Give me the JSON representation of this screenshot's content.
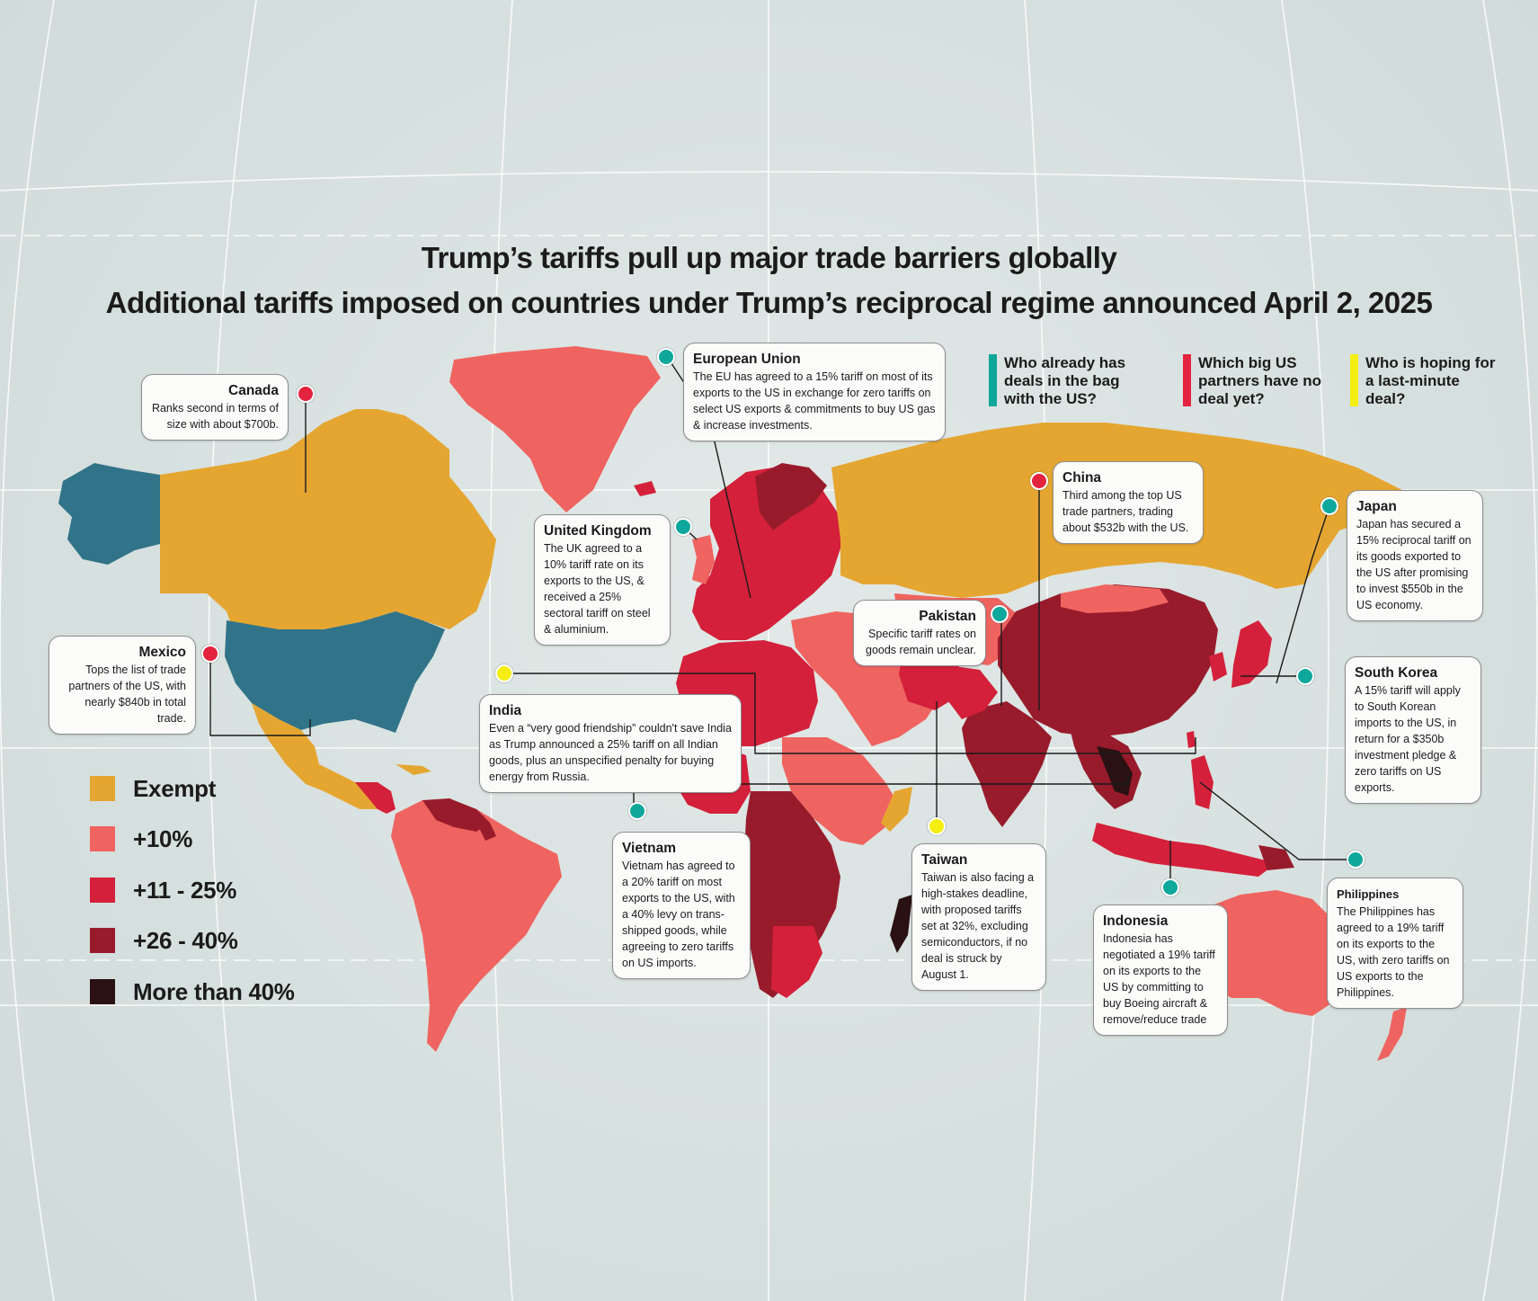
{
  "title": "Trump’s tariffs pull up major trade barriers globally",
  "subtitle": "Additional tariffs imposed on countries under Trump’s reciprocal regime announced April 2, 2025",
  "colors": {
    "exempt": "#e5a631",
    "plus10": "#ef6460",
    "plus11_25": "#d4203a",
    "plus26_40": "#981b2c",
    "more40": "#2a1113",
    "us_alaska": "#317489",
    "ocean": "#d8e2e1",
    "teal": "#0ea79b",
    "red": "#e4233f",
    "yellow": "#f4ee11"
  },
  "legend": [
    {
      "label": "Exempt",
      "color": "#e5a631"
    },
    {
      "label": "+10%",
      "color": "#ef6460"
    },
    {
      "label": "+11 - 25%",
      "color": "#d4203a"
    },
    {
      "label": "+26 - 40%",
      "color": "#981b2c"
    },
    {
      "label": "More than 40%",
      "color": "#2a1113"
    }
  ],
  "key": [
    {
      "label": "Who already has deals in the bag with the US?",
      "color": "#0ea79b"
    },
    {
      "label": "Which big US partners have no deal yet?",
      "color": "#e4233f"
    },
    {
      "label": "Who is hoping for a last-minute deal?",
      "color": "#f4ee11"
    }
  ],
  "callouts": {
    "canada": {
      "title": "Canada",
      "body": "Ranks second in terms of size with about $700b.",
      "marker": "red"
    },
    "mexico": {
      "title": "Mexico",
      "body": "Tops the list of trade partners of the US, with nearly $840b in total trade.",
      "marker": "red"
    },
    "eu": {
      "title": "European Union",
      "body": "The EU has agreed to a 15% tariff on most of its exports to the US in exchange for zero tariffs on select US exports & commitments to buy US gas & increase investments.",
      "marker": "teal"
    },
    "uk": {
      "title": "United Kingdom",
      "body": "The UK agreed to a 10% tariff rate on its exports to the US, & received a 25% sectoral tariff on steel & aluminium.",
      "marker": "teal"
    },
    "china": {
      "title": "China",
      "body": "Third among the top US trade partners, trading about $532b with the US.",
      "marker": "red"
    },
    "japan": {
      "title": "Japan",
      "body": "Japan has secured a 15% reciprocal tariff on its goods exported to the US after promising to invest $550b in the US economy.",
      "marker": "teal"
    },
    "pakistan": {
      "title": "Pakistan",
      "body": "Specific tariff rates on goods remain unclear.",
      "marker": "teal"
    },
    "south_korea": {
      "title": "South Korea",
      "body": "A 15% tariff will apply to South Korean imports to the US, in return for a $350b investment pledge & zero tariffs on US exports.",
      "marker": "teal"
    },
    "india": {
      "title": "India",
      "body": "Even a “very good friendship” couldn't save India as Trump announced a 25% tariff on all Indian goods, plus an unspecified penalty for buying energy from Russia.",
      "marker": "yellow"
    },
    "vietnam": {
      "title": "Vietnam",
      "body": "Vietnam has agreed to a 20% tariff on most exports to the US, with a 40% levy on trans-shipped goods, while agreeing to zero tariffs on US imports.",
      "marker": "teal"
    },
    "taiwan": {
      "title": "Taiwan",
      "body": "Taiwan is also facing a high-stakes deadline, with proposed tariffs set at 32%, excluding semiconductors, if no deal is struck by August 1.",
      "marker": "yellow"
    },
    "indonesia": {
      "title": "Indonesia",
      "body": "Indonesia has negotiated a 19% tariff on its exports to the US by committing to buy Boeing aircraft & remove/reduce trade",
      "marker": "teal"
    },
    "philippines": {
      "title": "Philippines",
      "body": "The Philippines has agreed to a 19% tariff on its exports to the US, with zero tariffs on US exports to the Philippines.",
      "marker": "teal"
    }
  }
}
